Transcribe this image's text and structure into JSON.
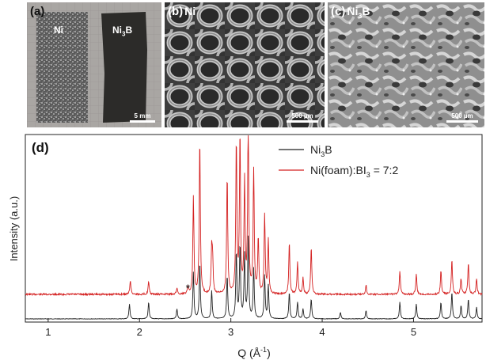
{
  "panel_a": {
    "label": "(a)",
    "sample_ni": "Ni",
    "sample_ni3b_base": "Ni",
    "sample_ni3b_sub": "3",
    "sample_ni3b_tail": "B",
    "scale_bar": "5 mm"
  },
  "panel_b": {
    "label": "(b)",
    "material": "Ni",
    "scale_bar": "500 µm"
  },
  "panel_c": {
    "label": "(c)",
    "material_base": "Ni",
    "material_sub": "3",
    "material_tail": "B",
    "scale_bar": "500 µm"
  },
  "panel_d": {
    "label": "(d)"
  },
  "colors": {
    "ni3b_series": "#222222",
    "foam_series": "#d42020"
  },
  "chart_data": {
    "type": "line",
    "xlabel": "Q (Å",
    "xlabel_sup": "-1",
    "xlabel_tail": ")",
    "ylabel": "Intensity (a.u.)",
    "xlim": [
      0.75,
      5.75
    ],
    "x_ticks": [
      1,
      2,
      3,
      4,
      5
    ],
    "y_ticks_shown": false,
    "legend_position": "top-right",
    "annotation": "*",
    "annotation_q": 2.53,
    "series": [
      {
        "name": "Ni3B",
        "label_base": "Ni",
        "label_sub": "3",
        "label_tail": "B",
        "color": "#222222",
        "peaks": [
          [
            1.89,
            0.09
          ],
          [
            2.1,
            0.1
          ],
          [
            2.41,
            0.06
          ],
          [
            2.59,
            0.28
          ],
          [
            2.66,
            0.34
          ],
          [
            2.79,
            0.17
          ],
          [
            2.96,
            0.26
          ],
          [
            3.06,
            0.4
          ],
          [
            3.1,
            0.44
          ],
          [
            3.15,
            0.38
          ],
          [
            3.19,
            0.48
          ],
          [
            3.25,
            0.3
          ],
          [
            3.37,
            0.26
          ],
          [
            3.41,
            0.2
          ],
          [
            3.64,
            0.16
          ],
          [
            3.73,
            0.1
          ],
          [
            3.79,
            0.06
          ],
          [
            3.88,
            0.12
          ],
          [
            4.2,
            0.04
          ],
          [
            4.48,
            0.05
          ],
          [
            4.85,
            0.1
          ],
          [
            5.03,
            0.09
          ],
          [
            5.3,
            0.1
          ],
          [
            5.42,
            0.16
          ],
          [
            5.52,
            0.08
          ],
          [
            5.6,
            0.12
          ],
          [
            5.69,
            0.07
          ]
        ]
      },
      {
        "name": "Ni(foam):BI3 = 7:2",
        "label_base": "Ni(foam):BI",
        "label_sub": "3",
        "label_tail": " = 7:2",
        "color": "#d42020",
        "peaks": [
          [
            1.9,
            0.09
          ],
          [
            2.1,
            0.08
          ],
          [
            2.41,
            0.04
          ],
          [
            2.53,
            0.05
          ],
          [
            2.59,
            0.62
          ],
          [
            2.66,
            0.98
          ],
          [
            2.79,
            0.27
          ],
          [
            2.8,
            0.2
          ],
          [
            2.96,
            0.75
          ],
          [
            3.06,
            0.96
          ],
          [
            3.1,
            1.0
          ],
          [
            3.15,
            0.7
          ],
          [
            3.19,
            1.12
          ],
          [
            3.25,
            0.78
          ],
          [
            3.3,
            0.35
          ],
          [
            3.37,
            0.5
          ],
          [
            3.41,
            0.34
          ],
          [
            3.64,
            0.33
          ],
          [
            3.73,
            0.2
          ],
          [
            3.79,
            0.1
          ],
          [
            3.88,
            0.3
          ],
          [
            4.48,
            0.06
          ],
          [
            4.85,
            0.15
          ],
          [
            5.03,
            0.13
          ],
          [
            5.3,
            0.15
          ],
          [
            5.42,
            0.22
          ],
          [
            5.52,
            0.1
          ],
          [
            5.6,
            0.2
          ],
          [
            5.69,
            0.1
          ]
        ]
      }
    ]
  }
}
